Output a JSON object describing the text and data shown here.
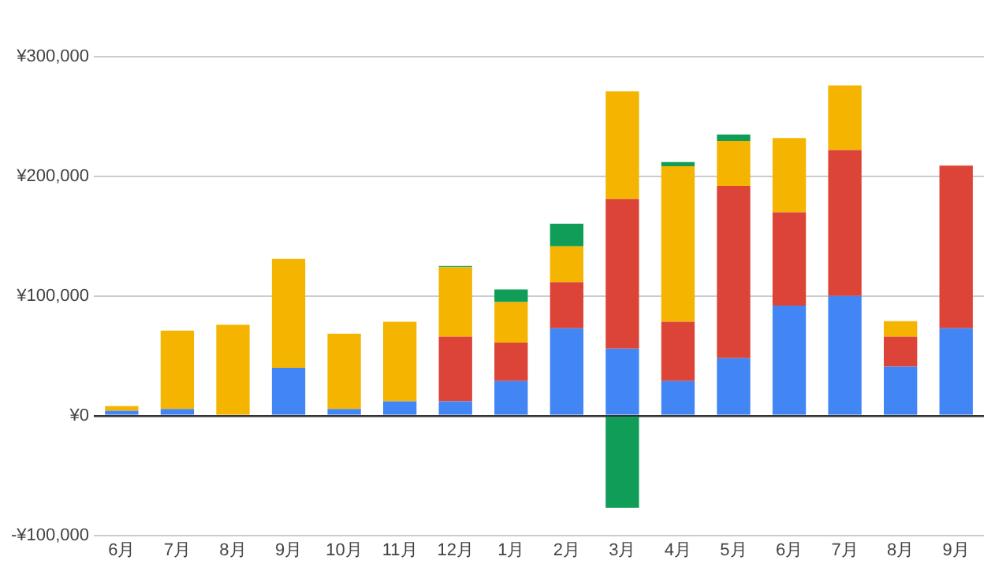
{
  "chart_data": {
    "type": "bar",
    "stacked": true,
    "categories": [
      "6月",
      "7月",
      "8月",
      "9月",
      "10月",
      "11月",
      "12月",
      "1月",
      "2月",
      "3月",
      "4月",
      "5月",
      "6月",
      "7月",
      "8月",
      "9月"
    ],
    "series": [
      {
        "color": "#4285f4",
        "values": [
          4000,
          5500,
          0,
          40000,
          5500,
          12000,
          12000,
          29000,
          73000,
          56000,
          29000,
          48000,
          92000,
          100000,
          41000,
          73000
        ]
      },
      {
        "color": "#db4437",
        "values": [
          0,
          0,
          0,
          0,
          0,
          0,
          54000,
          32000,
          38500,
          125000,
          49500,
          144000,
          78000,
          122000,
          25000,
          136000
        ]
      },
      {
        "color": "#f4b400",
        "values": [
          4000,
          65500,
          76000,
          91000,
          63000,
          66500,
          58000,
          34000,
          30000,
          90000,
          130000,
          37500,
          62000,
          54000,
          13000,
          0
        ]
      },
      {
        "color": "#0f9d58",
        "values": [
          0,
          0,
          0,
          0,
          0,
          0,
          1000,
          10500,
          19000,
          -77000,
          3500,
          5500,
          0,
          0,
          0,
          0
        ]
      }
    ],
    "ylim": [
      -100000,
      300000
    ],
    "yticks": [
      {
        "value": -100000,
        "label": "-¥100,000"
      },
      {
        "value": 0,
        "label": "¥0"
      },
      {
        "value": 100000,
        "label": "¥100,000"
      },
      {
        "value": 200000,
        "label": "¥200,000"
      },
      {
        "value": 300000,
        "label": "¥300,000"
      }
    ],
    "grid": "y",
    "legend": false
  }
}
